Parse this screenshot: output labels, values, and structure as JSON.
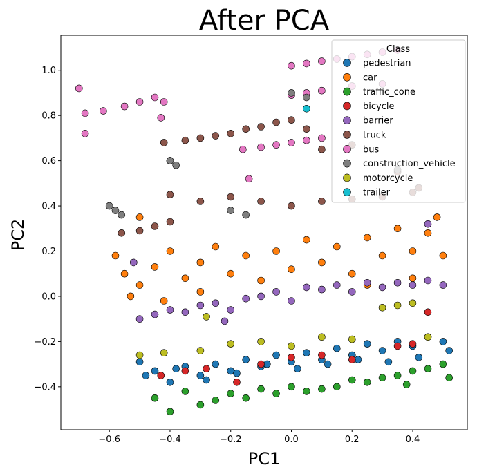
{
  "chart_data": {
    "type": "scatter",
    "title": "After PCA",
    "xlabel": "PC1",
    "ylabel": "PC2",
    "xlim": [
      -0.76,
      0.58
    ],
    "ylim": [
      -0.59,
      1.155
    ],
    "xticks": [
      -0.6,
      -0.4,
      -0.2,
      0.0,
      0.2,
      0.4
    ],
    "xtick_labels": [
      "−0.6",
      "−0.4",
      "−0.2",
      "0.0",
      "0.2",
      "0.4"
    ],
    "yticks": [
      -0.4,
      -0.2,
      0.0,
      0.2,
      0.4,
      0.6,
      0.8,
      1.0
    ],
    "ytick_labels": [
      "−0.4",
      "−0.2",
      "0.0",
      "0.2",
      "0.4",
      "0.6",
      "0.8",
      "1.0"
    ],
    "grid": false,
    "legend_title": "Class",
    "legend_position": "top-right",
    "series": [
      {
        "name": "pedestrian",
        "color": "#1f77b4",
        "points": [
          [
            -0.5,
            -0.29
          ],
          [
            -0.45,
            -0.33
          ],
          [
            -0.4,
            -0.38
          ],
          [
            -0.35,
            -0.31
          ],
          [
            -0.3,
            -0.35
          ],
          [
            -0.25,
            -0.3
          ],
          [
            -0.2,
            -0.33
          ],
          [
            -0.15,
            -0.28
          ],
          [
            -0.1,
            -0.31
          ],
          [
            -0.05,
            -0.26
          ],
          [
            0.0,
            -0.29
          ],
          [
            0.05,
            -0.25
          ],
          [
            0.1,
            -0.28
          ],
          [
            0.15,
            -0.23
          ],
          [
            0.2,
            -0.26
          ],
          [
            0.25,
            -0.21
          ],
          [
            0.3,
            -0.24
          ],
          [
            0.35,
            -0.2
          ],
          [
            0.4,
            -0.22
          ],
          [
            0.45,
            -0.18
          ],
          [
            0.5,
            -0.2
          ],
          [
            -0.48,
            -0.35
          ],
          [
            -0.38,
            -0.32
          ],
          [
            -0.28,
            -0.37
          ],
          [
            -0.18,
            -0.34
          ],
          [
            -0.08,
            -0.3
          ],
          [
            0.02,
            -0.32
          ],
          [
            0.12,
            -0.3
          ],
          [
            0.22,
            -0.28
          ],
          [
            0.32,
            -0.29
          ],
          [
            0.42,
            -0.27
          ],
          [
            0.52,
            -0.24
          ]
        ]
      },
      {
        "name": "car",
        "color": "#ff7f0e",
        "points": [
          [
            -0.58,
            0.18
          ],
          [
            -0.55,
            0.1
          ],
          [
            -0.5,
            0.05
          ],
          [
            -0.45,
            0.13
          ],
          [
            -0.4,
            0.2
          ],
          [
            -0.35,
            0.08
          ],
          [
            -0.3,
            0.15
          ],
          [
            -0.25,
            0.22
          ],
          [
            -0.2,
            0.1
          ],
          [
            -0.15,
            0.18
          ],
          [
            -0.1,
            0.07
          ],
          [
            -0.05,
            0.2
          ],
          [
            0.0,
            0.12
          ],
          [
            0.05,
            0.25
          ],
          [
            0.1,
            0.15
          ],
          [
            0.15,
            0.22
          ],
          [
            0.2,
            0.1
          ],
          [
            0.25,
            0.26
          ],
          [
            0.3,
            0.18
          ],
          [
            0.35,
            0.3
          ],
          [
            0.4,
            0.2
          ],
          [
            0.45,
            0.28
          ],
          [
            0.5,
            0.18
          ],
          [
            -0.53,
            0.0
          ],
          [
            -0.42,
            -0.02
          ],
          [
            -0.3,
            0.02
          ],
          [
            -0.5,
            0.35
          ],
          [
            0.25,
            0.05
          ],
          [
            0.4,
            0.08
          ],
          [
            0.48,
            0.35
          ]
        ]
      },
      {
        "name": "traffic_cone",
        "color": "#2ca02c",
        "points": [
          [
            -0.45,
            -0.45
          ],
          [
            -0.4,
            -0.51
          ],
          [
            -0.35,
            -0.42
          ],
          [
            -0.3,
            -0.48
          ],
          [
            -0.25,
            -0.46
          ],
          [
            -0.2,
            -0.43
          ],
          [
            -0.15,
            -0.45
          ],
          [
            -0.1,
            -0.41
          ],
          [
            -0.05,
            -0.43
          ],
          [
            0.0,
            -0.4
          ],
          [
            0.05,
            -0.42
          ],
          [
            0.1,
            -0.41
          ],
          [
            0.15,
            -0.4
          ],
          [
            0.2,
            -0.37
          ],
          [
            0.25,
            -0.38
          ],
          [
            0.3,
            -0.36
          ],
          [
            0.35,
            -0.35
          ],
          [
            0.4,
            -0.33
          ],
          [
            0.45,
            -0.32
          ],
          [
            0.5,
            -0.3
          ],
          [
            0.52,
            -0.36
          ],
          [
            0.38,
            -0.39
          ]
        ]
      },
      {
        "name": "bicycle",
        "color": "#d62728",
        "points": [
          [
            -0.43,
            -0.35
          ],
          [
            -0.35,
            -0.33
          ],
          [
            -0.28,
            -0.32
          ],
          [
            -0.18,
            -0.38
          ],
          [
            -0.1,
            -0.3
          ],
          [
            0.0,
            -0.27
          ],
          [
            0.1,
            -0.26
          ],
          [
            0.2,
            -0.28
          ],
          [
            0.35,
            -0.22
          ],
          [
            0.4,
            -0.21
          ],
          [
            0.45,
            -0.07
          ]
        ]
      },
      {
        "name": "barrier",
        "color": "#9467bd",
        "points": [
          [
            -0.5,
            -0.1
          ],
          [
            -0.45,
            -0.08
          ],
          [
            -0.4,
            -0.06
          ],
          [
            -0.35,
            -0.07
          ],
          [
            -0.3,
            -0.04
          ],
          [
            -0.25,
            -0.03
          ],
          [
            -0.2,
            -0.06
          ],
          [
            -0.15,
            -0.01
          ],
          [
            -0.1,
            0.0
          ],
          [
            -0.05,
            0.02
          ],
          [
            0.0,
            -0.02
          ],
          [
            0.05,
            0.04
          ],
          [
            0.1,
            0.03
          ],
          [
            0.15,
            0.05
          ],
          [
            0.2,
            0.02
          ],
          [
            0.25,
            0.06
          ],
          [
            0.3,
            0.04
          ],
          [
            0.35,
            0.06
          ],
          [
            0.4,
            0.05
          ],
          [
            0.45,
            0.07
          ],
          [
            0.5,
            0.05
          ],
          [
            -0.22,
            -0.11
          ],
          [
            0.45,
            0.32
          ],
          [
            -0.52,
            0.15
          ]
        ]
      },
      {
        "name": "truck",
        "color": "#8c564b",
        "points": [
          [
            -0.56,
            0.28
          ],
          [
            -0.5,
            0.29
          ],
          [
            -0.45,
            0.31
          ],
          [
            -0.4,
            0.33
          ],
          [
            -0.42,
            0.68
          ],
          [
            -0.35,
            0.69
          ],
          [
            -0.3,
            0.7
          ],
          [
            -0.25,
            0.71
          ],
          [
            -0.2,
            0.72
          ],
          [
            -0.15,
            0.74
          ],
          [
            -0.1,
            0.75
          ],
          [
            -0.05,
            0.77
          ],
          [
            0.0,
            0.78
          ],
          [
            -0.4,
            0.45
          ],
          [
            -0.3,
            0.42
          ],
          [
            -0.2,
            0.44
          ],
          [
            -0.1,
            0.42
          ],
          [
            0.0,
            0.4
          ],
          [
            0.1,
            0.42
          ],
          [
            0.2,
            0.43
          ],
          [
            0.3,
            0.44
          ],
          [
            0.4,
            0.46
          ],
          [
            0.1,
            0.65
          ],
          [
            0.2,
            0.67
          ],
          [
            0.05,
            0.74
          ],
          [
            0.35,
            0.55
          ],
          [
            0.42,
            0.48
          ]
        ]
      },
      {
        "name": "bus",
        "color": "#e377c2",
        "points": [
          [
            -0.7,
            0.92
          ],
          [
            -0.68,
            0.81
          ],
          [
            -0.62,
            0.82
          ],
          [
            -0.55,
            0.84
          ],
          [
            -0.5,
            0.86
          ],
          [
            -0.45,
            0.88
          ],
          [
            -0.42,
            0.86
          ],
          [
            -0.43,
            0.79
          ],
          [
            -0.68,
            0.72
          ],
          [
            -0.4,
            0.6
          ],
          [
            -0.16,
            0.65
          ],
          [
            -0.1,
            0.66
          ],
          [
            -0.05,
            0.67
          ],
          [
            0.0,
            0.68
          ],
          [
            0.05,
            0.69
          ],
          [
            0.1,
            0.7
          ],
          [
            -0.14,
            0.52
          ],
          [
            0.0,
            1.02
          ],
          [
            0.05,
            1.03
          ],
          [
            0.1,
            1.04
          ],
          [
            0.15,
            1.05
          ],
          [
            0.2,
            1.06
          ],
          [
            0.25,
            1.07
          ],
          [
            0.3,
            1.08
          ],
          [
            0.35,
            1.09
          ],
          [
            0.0,
            0.89
          ],
          [
            0.05,
            0.9
          ],
          [
            0.1,
            0.91
          ],
          [
            0.2,
            0.93
          ],
          [
            0.3,
            0.94
          ]
        ]
      },
      {
        "name": "construction_vehicle",
        "color": "#7f7f7f",
        "points": [
          [
            -0.6,
            0.4
          ],
          [
            -0.58,
            0.38
          ],
          [
            -0.56,
            0.36
          ],
          [
            -0.4,
            0.6
          ],
          [
            -0.38,
            0.58
          ],
          [
            -0.2,
            0.38
          ],
          [
            -0.15,
            0.36
          ],
          [
            0.0,
            0.9
          ],
          [
            0.05,
            0.88
          ],
          [
            0.35,
            0.56
          ]
        ]
      },
      {
        "name": "motorcycle",
        "color": "#bcbd22",
        "points": [
          [
            -0.5,
            -0.26
          ],
          [
            -0.42,
            -0.25
          ],
          [
            -0.3,
            -0.24
          ],
          [
            -0.28,
            -0.09
          ],
          [
            -0.2,
            -0.21
          ],
          [
            -0.1,
            -0.2
          ],
          [
            0.0,
            -0.22
          ],
          [
            0.1,
            -0.18
          ],
          [
            0.2,
            -0.19
          ],
          [
            0.3,
            -0.05
          ],
          [
            0.35,
            -0.04
          ],
          [
            0.4,
            -0.03
          ],
          [
            0.45,
            -0.18
          ]
        ]
      },
      {
        "name": "trailer",
        "color": "#17becf",
        "points": [
          [
            0.05,
            0.83
          ]
        ]
      }
    ]
  }
}
